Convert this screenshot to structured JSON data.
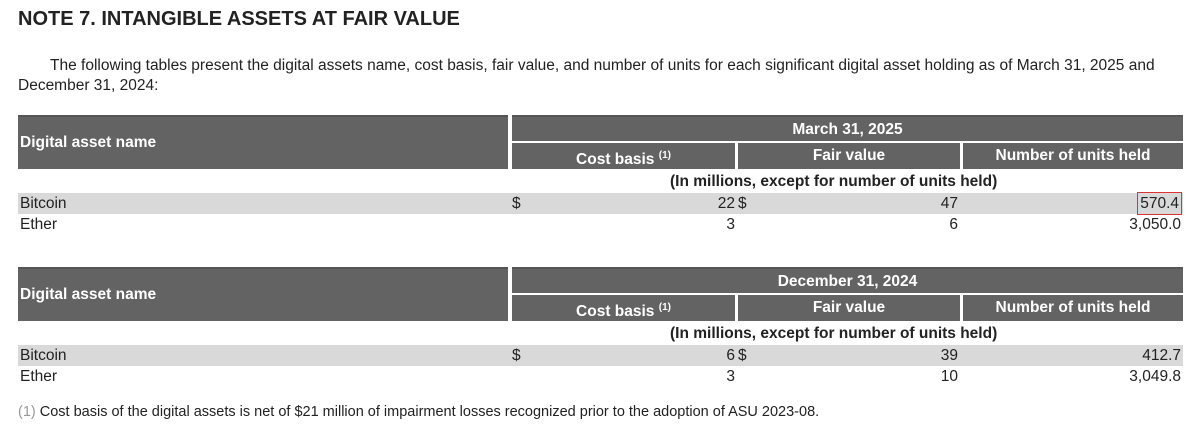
{
  "title": "NOTE 7. INTANGIBLE ASSETS AT FAIR VALUE",
  "intro": "The following tables present the digital assets name, cost basis, fair value, and number of units for each significant digital asset holding as of March 31, 2025 and December 31, 2024:",
  "columns": {
    "name": "Digital asset name",
    "cost": "Cost basis",
    "cost_note": "(1)",
    "fair": "Fair value",
    "units": "Number of units held",
    "subheader": "(In millions, except for number of units held)",
    "currency": "$"
  },
  "tables": [
    {
      "date": "March 31, 2025",
      "rows": [
        {
          "name": "Bitcoin",
          "cost": "22",
          "fair": "47",
          "units": "570.4"
        },
        {
          "name": "Ether",
          "cost": "3",
          "fair": "6",
          "units": "3,050.0"
        }
      ]
    },
    {
      "date": "December 31, 2024",
      "rows": [
        {
          "name": "Bitcoin",
          "cost": "6",
          "fair": "39",
          "units": "412.7"
        },
        {
          "name": "Ether",
          "cost": "3",
          "fair": "10",
          "units": "3,049.8"
        }
      ]
    }
  ],
  "footnote": {
    "marker": "(1)",
    "text": "Cost basis of the digital assets is net of $21 million of impairment losses recognized prior to the adoption of ASU 2023-08."
  },
  "colors": {
    "header_bg": "#636363",
    "row_stripe": "#d9d9d9",
    "highlight": "#dd3333"
  }
}
